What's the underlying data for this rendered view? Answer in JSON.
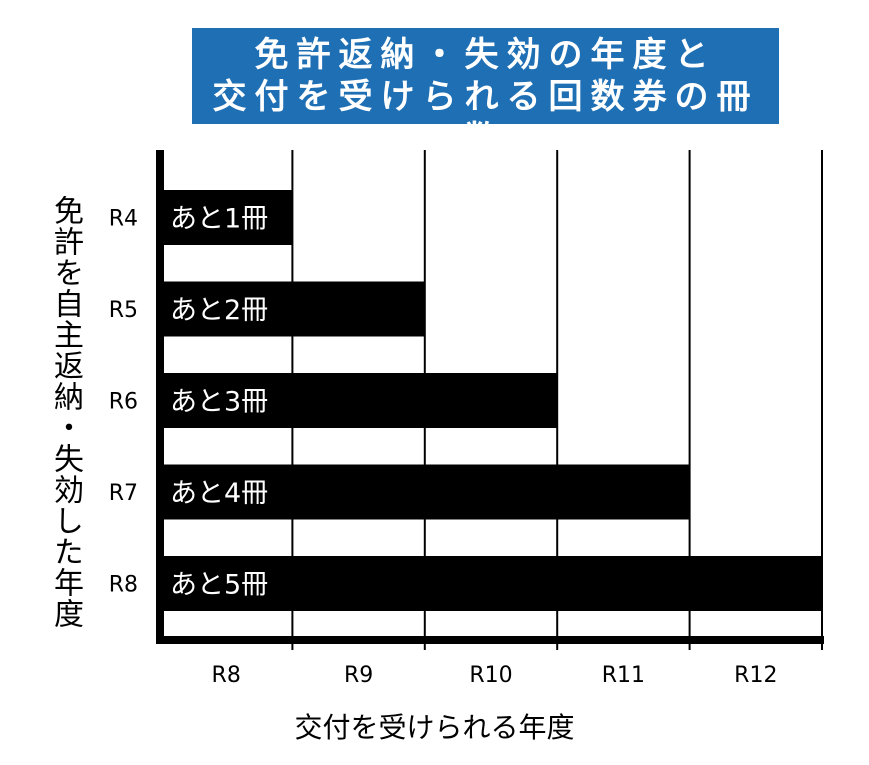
{
  "title_lines": [
    "免許返納・失効の年度と",
    "交付を受けられる回数券の冊数"
  ],
  "colors": {
    "title_bg": "#1f6fb5",
    "title_text": "#ffffff",
    "bar": "#000000",
    "bar_label": "#ffffff"
  },
  "chart_data": {
    "type": "bar",
    "orientation": "horizontal",
    "title": "免許返納・失効の年度と交付を受けられる回数券の冊数",
    "ylabel": "免許を自主返納・失効した年度",
    "xlabel": "交付を受けられる年度",
    "categories": [
      "R4",
      "R5",
      "R6",
      "R7",
      "R8"
    ],
    "x_ticks": [
      "R8",
      "R9",
      "R10",
      "R11",
      "R12"
    ],
    "values": [
      1,
      2,
      3,
      4,
      5
    ],
    "bar_labels": [
      "あと1冊",
      "あと2冊",
      "あと3冊",
      "あと4冊",
      "あと5冊"
    ],
    "xlim": [
      0,
      5
    ],
    "grid": true
  }
}
